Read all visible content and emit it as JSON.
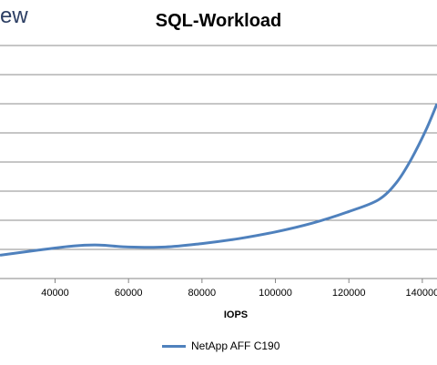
{
  "header": {
    "corner_text": "ew"
  },
  "chart_data": {
    "type": "line",
    "title": "SQL-Workload",
    "xlabel": "IOPS",
    "ylabel": "",
    "xlim": [
      25000,
      144000
    ],
    "ylim": [
      0,
      9
    ],
    "x_ticks": [
      "40000",
      "60000",
      "80000",
      "100000",
      "120000",
      "140000"
    ],
    "grid": true,
    "legend": "bottom",
    "colors": {
      "series": "#4f81bd",
      "grid": "#8c8c8c",
      "axis": "#868686"
    },
    "series": [
      {
        "name": "NetApp AFF C190",
        "x": [
          25000,
          35000,
          45000,
          52000,
          60000,
          70000,
          80000,
          90000,
          100000,
          110000,
          120000,
          128000,
          133000,
          137000,
          141000,
          144000
        ],
        "y": [
          0.8,
          0.97,
          1.12,
          1.15,
          1.08,
          1.08,
          1.2,
          1.37,
          1.6,
          1.9,
          2.3,
          2.7,
          3.3,
          4.1,
          5.1,
          6.0
        ]
      }
    ]
  }
}
